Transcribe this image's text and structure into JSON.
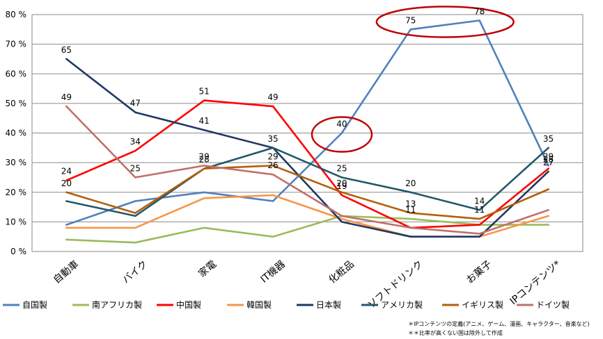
{
  "chart_data": {
    "type": "line",
    "title": "",
    "xlabel": "",
    "ylabel": "",
    "categories": [
      "自動車",
      "バイク",
      "家電",
      "IT機器",
      "化粧品",
      "ソフトドリンク",
      "お菓子",
      "IPコンテンツ*"
    ],
    "ylim": [
      0,
      80
    ],
    "yticks": [
      0,
      10,
      20,
      30,
      40,
      50,
      60,
      70,
      80
    ],
    "ytick_labels": [
      "0 %",
      "10 %",
      "20 %",
      "30 %",
      "40 %",
      "50 %",
      "60 %",
      "70 %",
      "80 %"
    ],
    "grid": true,
    "legend_position": "bottom",
    "series": [
      {
        "name": "自国製",
        "color": "#4F81BD",
        "values": [
          9,
          17,
          20,
          17,
          40,
          75,
          78,
          29
        ],
        "labels": [
          null,
          null,
          null,
          null,
          "40",
          "75",
          "78",
          "29"
        ]
      },
      {
        "name": "南アフリカ製",
        "color": "#9BBB59",
        "values": [
          4,
          3,
          8,
          5,
          12,
          11,
          9,
          9
        ],
        "labels": [
          null,
          null,
          null,
          null,
          null,
          "11",
          null,
          null
        ]
      },
      {
        "name": "中国製",
        "color": "#FF0000",
        "values": [
          24,
          34,
          51,
          49,
          19,
          8,
          9,
          28
        ],
        "labels": [
          "24",
          "34",
          "51",
          "49",
          "19",
          null,
          null,
          "28"
        ]
      },
      {
        "name": "韓国製",
        "color": "#F79646",
        "values": [
          8,
          8,
          18,
          19,
          11,
          5,
          5,
          12
        ],
        "labels": [
          null,
          null,
          null,
          null,
          null,
          null,
          null,
          null
        ]
      },
      {
        "name": "日本製",
        "color": "#1F3864",
        "values": [
          65,
          47,
          41,
          35,
          10,
          5,
          5,
          27
        ],
        "labels": [
          "65",
          "47",
          "41",
          "35",
          null,
          null,
          null,
          "27"
        ]
      },
      {
        "name": "アメリカ製",
        "color": "#215968",
        "values": [
          17,
          12,
          28,
          35,
          25,
          20,
          14,
          35
        ],
        "labels": [
          null,
          null,
          "28",
          null,
          "25",
          "20",
          "14",
          "35"
        ]
      },
      {
        "name": "イギリス製",
        "color": "#B35F0B",
        "values": [
          20,
          13,
          28,
          29,
          20,
          13,
          11,
          21
        ],
        "labels": [
          "20",
          null,
          null,
          "29",
          "20",
          "13",
          "11",
          null
        ]
      },
      {
        "name": "ドイツ製",
        "color": "#C0706A",
        "values": [
          49,
          25,
          29,
          26,
          12,
          8,
          6,
          14
        ],
        "labels": [
          "49",
          "25",
          "29",
          "26",
          null,
          null,
          null,
          null
        ]
      }
    ],
    "highlights": [
      {
        "category_index": 4,
        "value": 40,
        "color": "#C00000"
      },
      {
        "category_from": 5,
        "category_to": 6,
        "value": 78,
        "color": "#C00000"
      }
    ]
  },
  "notes": [
    "＊IPコンテンツの定義(アニメ、ゲーム、漫画、キャラクター、音楽など)",
    "＊＊比率が高くない国は除外して作成"
  ]
}
